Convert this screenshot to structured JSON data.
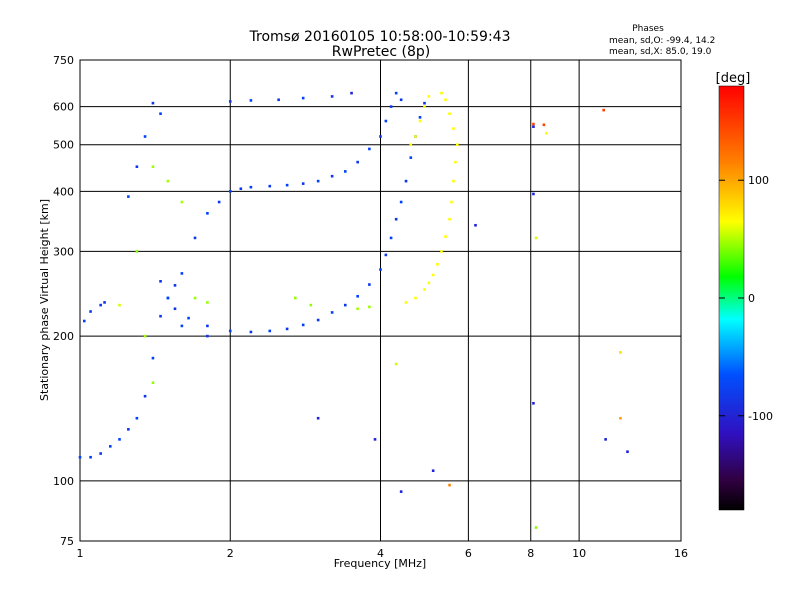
{
  "chart_data": {
    "type": "scatter",
    "title": "Tromsø 20160105 10:58:00-10:59:43",
    "subtitle": "RwPretec (8p)",
    "stats": {
      "heading": "Phases",
      "line_o": "mean, sd,O: -99.4, 14.2",
      "line_x": "mean, sd,X:  85.0, 19.0"
    },
    "xlabel": "Frequency [MHz]",
    "ylabel": "Stationary phase Virtual Height [km]",
    "x_scale": "log",
    "y_scale": "log",
    "xlim": [
      1,
      16
    ],
    "ylim": [
      75,
      750
    ],
    "x_ticks": [
      1,
      2,
      4,
      6,
      8,
      10,
      16
    ],
    "y_ticks": [
      75,
      100,
      200,
      300,
      400,
      500,
      600,
      750
    ],
    "x_grid": [
      2,
      4,
      6,
      8,
      10
    ],
    "y_grid": [
      100,
      200,
      300,
      400,
      500,
      600
    ],
    "grid": true,
    "colorbar": {
      "label": "[deg]",
      "ticks": [
        100,
        0,
        -100
      ],
      "range": [
        -180,
        180
      ]
    },
    "series": [
      {
        "name": "",
        "points": [
          [
            1.0,
            112,
            -95
          ],
          [
            1.05,
            112,
            -95
          ],
          [
            1.1,
            114,
            -100
          ],
          [
            1.15,
            118,
            -95
          ],
          [
            1.2,
            122,
            -95
          ],
          [
            1.25,
            128,
            -100
          ],
          [
            1.3,
            135,
            -95
          ],
          [
            1.35,
            150,
            -100
          ],
          [
            1.4,
            180,
            -95
          ],
          [
            1.45,
            220,
            -100
          ],
          [
            1.5,
            240,
            -95
          ],
          [
            1.55,
            255,
            -100
          ],
          [
            1.6,
            270,
            -95
          ],
          [
            1.7,
            320,
            -100
          ],
          [
            1.8,
            360,
            -95
          ],
          [
            1.9,
            380,
            -100
          ],
          [
            2.0,
            400,
            -95
          ],
          [
            2.1,
            405,
            -100
          ],
          [
            2.2,
            408,
            -95
          ],
          [
            2.4,
            410,
            -100
          ],
          [
            2.6,
            412,
            -95
          ],
          [
            2.8,
            415,
            -100
          ],
          [
            3.0,
            420,
            -95
          ],
          [
            3.2,
            430,
            -100
          ],
          [
            3.4,
            440,
            -95
          ],
          [
            3.6,
            460,
            -100
          ],
          [
            3.8,
            490,
            -95
          ],
          [
            4.0,
            520,
            -100
          ],
          [
            4.1,
            560,
            -95
          ],
          [
            4.2,
            600,
            -100
          ],
          [
            4.3,
            640,
            -95
          ],
          [
            4.4,
            620,
            -100
          ]
        ]
      },
      {
        "name": "",
        "points": [
          [
            1.45,
            260,
            -100
          ],
          [
            1.5,
            240,
            -95
          ],
          [
            1.55,
            228,
            -100
          ],
          [
            1.65,
            218,
            -95
          ],
          [
            1.8,
            210,
            -100
          ],
          [
            2.0,
            205,
            -95
          ],
          [
            2.2,
            204,
            -100
          ],
          [
            2.4,
            205,
            -95
          ],
          [
            2.6,
            207,
            -100
          ],
          [
            2.8,
            211,
            -95
          ],
          [
            3.0,
            216,
            -100
          ],
          [
            3.2,
            224,
            -95
          ],
          [
            3.4,
            232,
            -100
          ],
          [
            3.6,
            242,
            -95
          ],
          [
            3.8,
            256,
            -100
          ],
          [
            4.0,
            275,
            -95
          ],
          [
            4.1,
            295,
            -100
          ],
          [
            4.2,
            320,
            -95
          ],
          [
            4.3,
            350,
            -100
          ],
          [
            4.4,
            380,
            -95
          ],
          [
            4.5,
            420,
            -100
          ],
          [
            4.6,
            470,
            -95
          ],
          [
            4.7,
            520,
            -100
          ],
          [
            4.8,
            570,
            -95
          ],
          [
            4.9,
            610,
            -100
          ]
        ]
      },
      {
        "name": "",
        "points": [
          [
            4.5,
            235,
            100
          ],
          [
            4.7,
            240,
            100
          ],
          [
            4.9,
            250,
            100
          ],
          [
            5.0,
            258,
            100
          ],
          [
            5.1,
            268,
            100
          ],
          [
            5.2,
            282,
            100
          ],
          [
            5.3,
            300,
            100
          ],
          [
            5.4,
            322,
            100
          ],
          [
            5.5,
            350,
            100
          ],
          [
            5.55,
            380,
            100
          ],
          [
            5.6,
            420,
            100
          ],
          [
            5.65,
            460,
            100
          ],
          [
            5.7,
            500,
            100
          ],
          [
            5.6,
            540,
            100
          ],
          [
            5.5,
            580,
            100
          ],
          [
            5.4,
            620,
            100
          ],
          [
            5.3,
            640,
            100
          ],
          [
            4.6,
            500,
            100
          ],
          [
            4.7,
            520,
            100
          ],
          [
            4.8,
            560,
            100
          ],
          [
            4.9,
            600,
            100
          ],
          [
            5.0,
            630,
            100
          ],
          [
            3.6,
            228,
            60
          ],
          [
            3.8,
            230,
            60
          ],
          [
            2.7,
            240,
            55
          ],
          [
            2.9,
            232,
            55
          ],
          [
            1.7,
            240,
            55
          ],
          [
            1.8,
            235,
            55
          ],
          [
            1.4,
            450,
            60
          ],
          [
            1.5,
            420,
            60
          ],
          [
            1.6,
            380,
            60
          ],
          [
            1.3,
            300,
            50
          ],
          [
            1.35,
            200,
            60
          ],
          [
            1.4,
            160,
            55
          ]
        ]
      }
    ],
    "isolated_points": [
      [
        1.02,
        215,
        -95
      ],
      [
        1.05,
        225,
        -95
      ],
      [
        1.1,
        232,
        -100
      ],
      [
        1.12,
        235,
        -100
      ],
      [
        1.2,
        232,
        80
      ],
      [
        1.25,
        390,
        -95
      ],
      [
        1.3,
        450,
        -100
      ],
      [
        1.35,
        520,
        -95
      ],
      [
        1.4,
        610,
        -100
      ],
      [
        1.45,
        580,
        -95
      ],
      [
        2.0,
        615,
        -100
      ],
      [
        2.2,
        618,
        -95
      ],
      [
        2.5,
        620,
        -100
      ],
      [
        2.8,
        625,
        -95
      ],
      [
        3.2,
        630,
        -100
      ],
      [
        3.5,
        640,
        -110
      ],
      [
        3.0,
        135,
        -110
      ],
      [
        3.9,
        122,
        -110
      ],
      [
        4.3,
        175,
        80
      ],
      [
        4.4,
        95,
        -110
      ],
      [
        5.1,
        105,
        -110
      ],
      [
        5.5,
        98,
        140
      ],
      [
        6.2,
        340,
        -110
      ],
      [
        8.1,
        552,
        160
      ],
      [
        8.1,
        545,
        -110
      ],
      [
        8.1,
        395,
        -110
      ],
      [
        8.2,
        320,
        80
      ],
      [
        8.1,
        145,
        -110
      ],
      [
        8.2,
        80,
        50
      ],
      [
        8.5,
        550,
        160
      ],
      [
        8.6,
        528,
        100
      ],
      [
        11.2,
        590,
        160
      ],
      [
        12.1,
        185,
        110
      ],
      [
        12.1,
        135,
        130
      ],
      [
        11.3,
        122,
        -110
      ],
      [
        12.5,
        115,
        -110
      ],
      [
        1.6,
        210,
        -95
      ],
      [
        1.8,
        200,
        -100
      ]
    ]
  }
}
